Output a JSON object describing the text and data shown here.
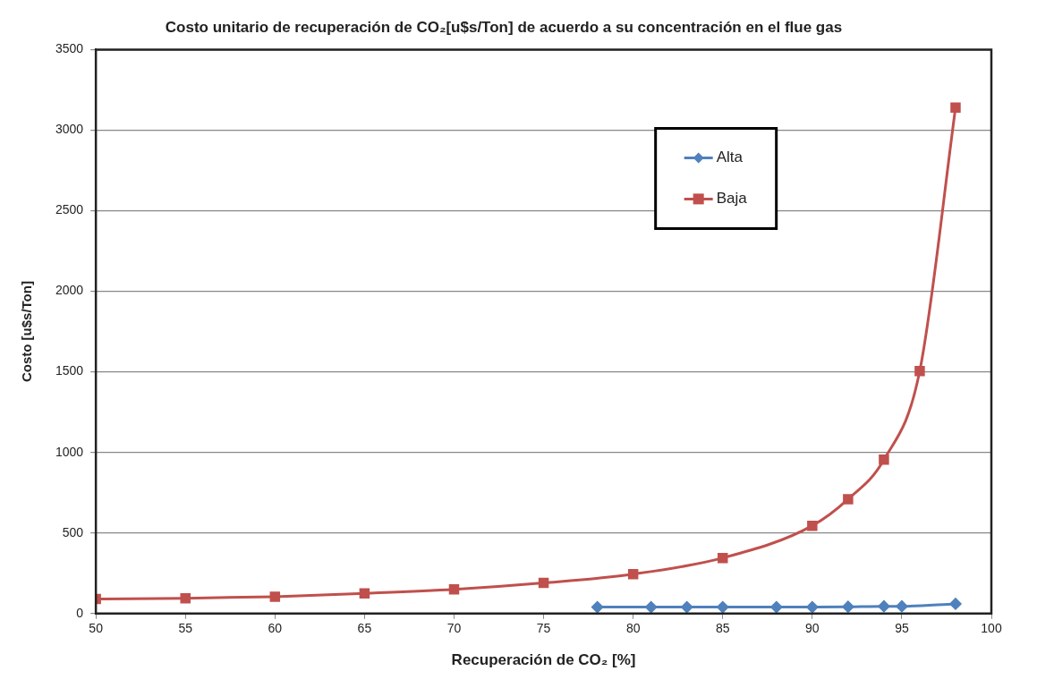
{
  "chart_data": {
    "type": "line",
    "title": "Costo unitario de recuperación de CO₂[u$s/Ton] de acuerdo a su concentración en el flue gas",
    "xlabel": "Recuperación de CO₂ [%]",
    "ylabel": "Costo [u$s/Ton]",
    "series": [
      {
        "name": "Alta",
        "color": "#4f81bd",
        "marker": "diamond",
        "x": [
          78,
          81,
          83,
          85,
          88,
          90,
          92,
          94,
          95,
          98
        ],
        "values": [
          40,
          40,
          40,
          40,
          40,
          40,
          42,
          45,
          45,
          60
        ]
      },
      {
        "name": "Baja",
        "color": "#c0504d",
        "marker": "square",
        "x": [
          50,
          55,
          60,
          65,
          70,
          75,
          80,
          85,
          90,
          92,
          94,
          96,
          98
        ],
        "values": [
          90,
          95,
          105,
          125,
          150,
          190,
          245,
          345,
          545,
          710,
          955,
          1505,
          3140
        ]
      }
    ],
    "xlim": [
      50,
      100
    ],
    "xticks": [
      50,
      55,
      60,
      65,
      70,
      75,
      80,
      85,
      90,
      95,
      100
    ],
    "ylim": [
      0,
      3500
    ],
    "yticks": [
      0,
      500,
      1000,
      1500,
      2000,
      2500,
      3000,
      3500
    ],
    "grid": "y",
    "legend": "top right"
  }
}
